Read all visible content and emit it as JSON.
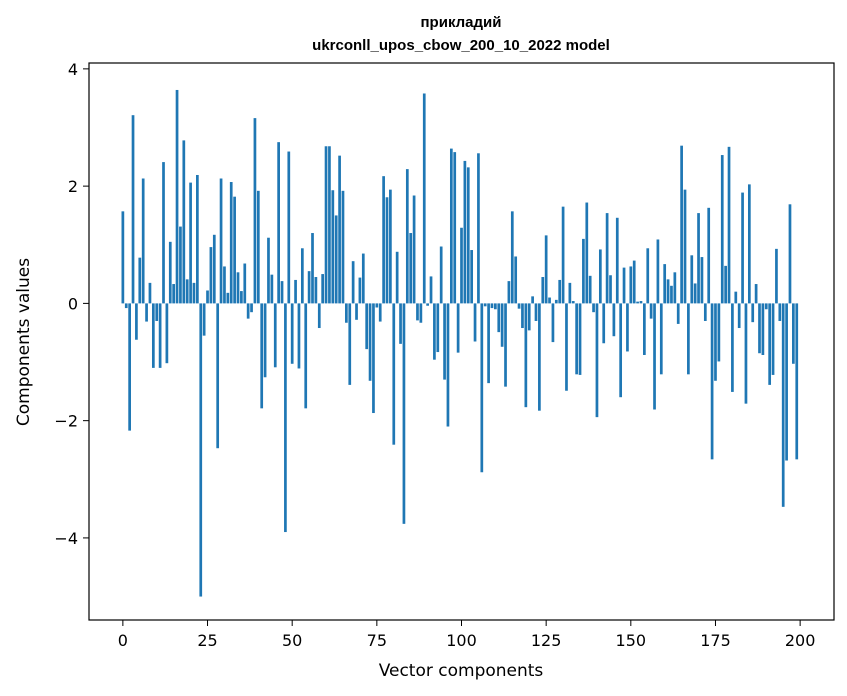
{
  "chart_data": {
    "type": "bar",
    "title_line1": "прикладий",
    "title_line2": "ukrconll_upos_cbow_200_10_2022 model",
    "xlabel": "Vector components",
    "ylabel": "Components values",
    "xlim": [
      -10,
      210
    ],
    "ylim": [
      -5.4,
      4.1
    ],
    "xticks": [
      0,
      25,
      50,
      75,
      100,
      125,
      150,
      175,
      200
    ],
    "xtick_labels": [
      "0",
      "25",
      "50",
      "75",
      "100",
      "125",
      "150",
      "175",
      "200"
    ],
    "yticks": [
      -4,
      -2,
      0,
      2,
      4
    ],
    "ytick_labels": [
      "−4",
      "−2",
      "0",
      "2",
      "4"
    ],
    "bar_color": "#1f77b4",
    "grid": false,
    "x": [
      0,
      1,
      2,
      3,
      4,
      5,
      6,
      7,
      8,
      9,
      10,
      11,
      12,
      13,
      14,
      15,
      16,
      17,
      18,
      19,
      20,
      21,
      22,
      23,
      24,
      25,
      26,
      27,
      28,
      29,
      30,
      31,
      32,
      33,
      34,
      35,
      36,
      37,
      38,
      39,
      40,
      41,
      42,
      43,
      44,
      45,
      46,
      47,
      48,
      49,
      50,
      51,
      52,
      53,
      54,
      55,
      56,
      57,
      58,
      59,
      60,
      61,
      62,
      63,
      64,
      65,
      66,
      67,
      68,
      69,
      70,
      71,
      72,
      73,
      74,
      75,
      76,
      77,
      78,
      79,
      80,
      81,
      82,
      83,
      84,
      85,
      86,
      87,
      88,
      89,
      90,
      91,
      92,
      93,
      94,
      95,
      96,
      97,
      98,
      99,
      100,
      101,
      102,
      103,
      104,
      105,
      106,
      107,
      108,
      109,
      110,
      111,
      112,
      113,
      114,
      115,
      116,
      117,
      118,
      119,
      120,
      121,
      122,
      123,
      124,
      125,
      126,
      127,
      128,
      129,
      130,
      131,
      132,
      133,
      134,
      135,
      136,
      137,
      138,
      139,
      140,
      141,
      142,
      143,
      144,
      145,
      146,
      147,
      148,
      149,
      150,
      151,
      152,
      153,
      154,
      155,
      156,
      157,
      158,
      159,
      160,
      161,
      162,
      163,
      164,
      165,
      166,
      167,
      168,
      169,
      170,
      171,
      172,
      173,
      174,
      175,
      176,
      177,
      178,
      179,
      180,
      181,
      182,
      183,
      184,
      185,
      186,
      187,
      188,
      189,
      190,
      191,
      192,
      193,
      194,
      195,
      196,
      197,
      198,
      199
    ],
    "values": [
      1.57,
      -0.08,
      -2.17,
      3.21,
      -0.62,
      0.78,
      2.13,
      -0.31,
      0.35,
      -1.1,
      -0.3,
      -1.1,
      2.41,
      -1.02,
      1.05,
      0.33,
      3.64,
      1.31,
      2.78,
      0.41,
      2.06,
      0.35,
      2.19,
      -5.0,
      -0.55,
      0.22,
      0.96,
      1.17,
      -2.47,
      2.13,
      0.63,
      0.18,
      2.07,
      1.82,
      0.53,
      0.21,
      0.68,
      -0.26,
      -0.15,
      3.16,
      1.92,
      -1.79,
      -1.26,
      1.12,
      0.49,
      -1.09,
      2.75,
      0.38,
      -3.9,
      2.59,
      -1.03,
      0.4,
      -1.11,
      0.94,
      -1.79,
      0.55,
      1.2,
      0.45,
      -0.42,
      0.5,
      2.68,
      2.68,
      1.93,
      1.5,
      2.52,
      1.92,
      -0.33,
      -1.39,
      0.72,
      -0.28,
      0.44,
      0.85,
      -0.78,
      -1.32,
      -1.87,
      -0.07,
      -0.31,
      2.17,
      1.81,
      1.94,
      -2.41,
      0.88,
      -0.69,
      -3.76,
      2.29,
      1.2,
      1.84,
      -0.29,
      -0.33,
      3.58,
      -0.04,
      0.46,
      -0.96,
      -0.83,
      0.97,
      -1.3,
      -2.1,
      2.64,
      2.58,
      -0.84,
      1.29,
      2.43,
      2.32,
      0.91,
      -0.65,
      2.56,
      -2.88,
      -0.05,
      -1.36,
      -0.08,
      -0.1,
      -0.49,
      -0.74,
      -1.42,
      0.38,
      1.57,
      0.8,
      -0.09,
      -0.42,
      -1.77,
      -0.46,
      0.12,
      -0.3,
      -1.83,
      0.45,
      1.16,
      0.1,
      -0.66,
      0.06,
      0.4,
      1.65,
      -1.49,
      0.35,
      0.04,
      -1.21,
      -1.22,
      1.1,
      1.72,
      0.47,
      -0.15,
      -1.94,
      0.92,
      -0.68,
      1.54,
      0.48,
      -0.56,
      1.46,
      -1.6,
      0.61,
      -0.82,
      0.63,
      0.73,
      0.03,
      0.04,
      -0.88,
      0.94,
      -0.26,
      -1.81,
      1.09,
      -1.21,
      0.67,
      0.41,
      0.3,
      0.53,
      -0.35,
      2.69,
      1.94,
      -1.21,
      0.82,
      0.34,
      1.54,
      0.79,
      -0.3,
      1.63,
      -2.66,
      -1.32,
      -0.99,
      2.53,
      0.64,
      2.67,
      -1.51,
      0.2,
      -0.42,
      1.89,
      -1.71,
      2.03,
      -0.32,
      0.33,
      -0.85,
      -0.88,
      -0.1,
      -1.39,
      -1.22,
      0.93,
      -0.3,
      -3.47,
      -2.68,
      1.69,
      -1.03,
      -2.66
    ]
  }
}
